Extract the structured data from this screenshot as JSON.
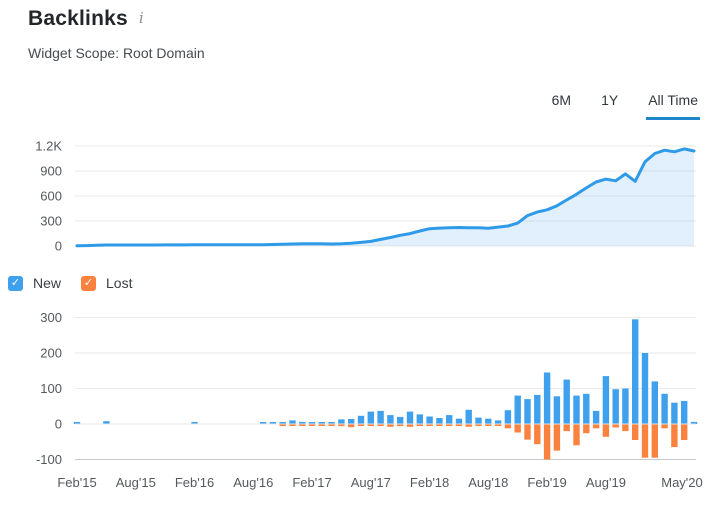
{
  "header": {
    "title": "Backlinks",
    "info_icon": "i",
    "subtitle": "Widget Scope: Root Domain"
  },
  "tabs": {
    "items": [
      {
        "label": "6M",
        "active": false
      },
      {
        "label": "1Y",
        "active": false
      },
      {
        "label": "All Time",
        "active": true
      }
    ]
  },
  "legend": {
    "new_label": "New",
    "lost_label": "Lost",
    "new_checked": true,
    "lost_checked": true,
    "check_glyph": "✓"
  },
  "colors": {
    "blue": "#3fa1ed",
    "line_blue": "#2f9be8",
    "area_fill": "rgba(66,160,236,0.16)",
    "orange": "#fb823e",
    "tab_underline": "#1e87cb",
    "gridline": "#e9eaeb",
    "gridline_bottom": "#c6cad0",
    "axis_text": "#55585c"
  },
  "chart_data": [
    {
      "type": "area",
      "name": "total-backlinks-over-time",
      "legend_position": "none",
      "grid": true,
      "ylim": [
        0,
        1260
      ],
      "y_ticks": [
        {
          "value": 0,
          "label": "0"
        },
        {
          "value": 300,
          "label": "300"
        },
        {
          "value": 600,
          "label": "600"
        },
        {
          "value": 900,
          "label": "900"
        },
        {
          "value": 1200,
          "label": "1.2K"
        }
      ],
      "categories": [
        "Feb'15",
        "Mar'15",
        "Apr'15",
        "May'15",
        "Jun'15",
        "Jul'15",
        "Aug'15",
        "Sep'15",
        "Oct'15",
        "Nov'15",
        "Dec'15",
        "Jan'16",
        "Feb'16",
        "Mar'16",
        "Apr'16",
        "May'16",
        "Jun'16",
        "Jul'16",
        "Aug'16",
        "Sep'16",
        "Oct'16",
        "Nov'16",
        "Dec'16",
        "Jan'17",
        "Feb'17",
        "Mar'17",
        "Apr'17",
        "May'17",
        "Jun'17",
        "Jul'17",
        "Aug'17",
        "Sep'17",
        "Oct'17",
        "Nov'17",
        "Dec'17",
        "Jan'18",
        "Feb'18",
        "Mar'18",
        "Apr'18",
        "May'18",
        "Jun'18",
        "Jul'18",
        "Aug'18",
        "Sep'18",
        "Oct'18",
        "Nov'18",
        "Dec'18",
        "Jan'19",
        "Feb'19",
        "Mar'19",
        "Apr'19",
        "May'19",
        "Jun'19",
        "Jul'19",
        "Aug'19",
        "Sep'19",
        "Oct'19",
        "Nov'19",
        "Dec'19",
        "Jan'20",
        "Feb'20",
        "Mar'20",
        "Apr'20",
        "May'20"
      ],
      "values": [
        3,
        5,
        8,
        12,
        12,
        12,
        12,
        12,
        12,
        13,
        13,
        13,
        14,
        14,
        14,
        14,
        14,
        14,
        14,
        16,
        18,
        20,
        24,
        26,
        28,
        26,
        24,
        27,
        33,
        43,
        55,
        79,
        102,
        129,
        149,
        180,
        208,
        215,
        220,
        222,
        220,
        218,
        212,
        227,
        240,
        275,
        365,
        408,
        435,
        482,
        553,
        620,
        697,
        768,
        803,
        782,
        865,
        776,
        1010,
        1110,
        1150,
        1130,
        1165,
        1140
      ]
    },
    {
      "type": "bar",
      "name": "new-and-lost-backlinks",
      "legend_position": "top-left",
      "grid": true,
      "ylim": [
        -140,
        330
      ],
      "y_ticks": [
        {
          "value": -100,
          "label": "-100"
        },
        {
          "value": 0,
          "label": "0"
        },
        {
          "value": 100,
          "label": "100"
        },
        {
          "value": 200,
          "label": "200"
        },
        {
          "value": 300,
          "label": "300"
        }
      ],
      "x_ticks": [
        {
          "month_index": 0,
          "label": "Feb'15"
        },
        {
          "month_index": 6,
          "label": "Aug'15"
        },
        {
          "month_index": 12,
          "label": "Feb'16"
        },
        {
          "month_index": 18,
          "label": "Aug'16"
        },
        {
          "month_index": 24,
          "label": "Feb'17"
        },
        {
          "month_index": 30,
          "label": "Aug'17"
        },
        {
          "month_index": 36,
          "label": "Feb'18"
        },
        {
          "month_index": 42,
          "label": "Aug'18"
        },
        {
          "month_index": 48,
          "label": "Feb'19"
        },
        {
          "month_index": 54,
          "label": "Aug'19"
        },
        {
          "month_index": 63,
          "label": "May'20"
        }
      ],
      "categories": [
        "Feb'15",
        "Mar'15",
        "Apr'15",
        "May'15",
        "Jun'15",
        "Jul'15",
        "Aug'15",
        "Sep'15",
        "Oct'15",
        "Nov'15",
        "Dec'15",
        "Jan'16",
        "Feb'16",
        "Mar'16",
        "Apr'16",
        "May'16",
        "Jun'16",
        "Jul'16",
        "Aug'16",
        "Sep'16",
        "Oct'16",
        "Nov'16",
        "Dec'16",
        "Jan'17",
        "Feb'17",
        "Mar'17",
        "Apr'17",
        "May'17",
        "Jun'17",
        "Jul'17",
        "Aug'17",
        "Sep'17",
        "Oct'17",
        "Nov'17",
        "Dec'17",
        "Jan'18",
        "Feb'18",
        "Mar'18",
        "Apr'18",
        "May'18",
        "Jun'18",
        "Jul'18",
        "Aug'18",
        "Sep'18",
        "Oct'18",
        "Nov'18",
        "Dec'18",
        "Jan'19",
        "Feb'19",
        "Mar'19",
        "Apr'19",
        "May'19",
        "Jun'19",
        "Jul'19",
        "Aug'19",
        "Sep'19",
        "Oct'19",
        "Nov'19",
        "Dec'19",
        "Jan'20",
        "Feb'20",
        "Mar'20",
        "Apr'20",
        "May'20"
      ],
      "series": [
        {
          "name": "New",
          "color": "#3fa1ed",
          "values": [
            3,
            0,
            0,
            8,
            0,
            0,
            0,
            0,
            0,
            0,
            0,
            0,
            3,
            0,
            0,
            0,
            0,
            0,
            0,
            3,
            3,
            3,
            10,
            6,
            5,
            3,
            3,
            13,
            14,
            23,
            35,
            37,
            25,
            20,
            35,
            27,
            21,
            17,
            25,
            15,
            40,
            18,
            15,
            10,
            39,
            80,
            70,
            82,
            145,
            78,
            125,
            80,
            85,
            37,
            135,
            98,
            100,
            295,
            200,
            120,
            85,
            60,
            65,
            6
          ]
        },
        {
          "name": "Lost",
          "color": "#fb823e",
          "values": [
            0,
            0,
            0,
            0,
            0,
            0,
            0,
            0,
            0,
            0,
            0,
            0,
            0,
            0,
            0,
            0,
            0,
            0,
            0,
            0,
            0,
            -2,
            -3,
            -2,
            -1,
            -5,
            -5,
            -6,
            -9,
            -2,
            -2,
            -3,
            -8,
            -2,
            -8,
            -3,
            -5,
            -2,
            -3,
            -2,
            -8,
            -4,
            -4,
            -3,
            -12,
            -24,
            -44,
            -57,
            -100,
            -75,
            -20,
            -60,
            -26,
            -12,
            -36,
            -10,
            -20,
            -45,
            -95,
            -95,
            -12,
            -65,
            -45,
            0
          ]
        }
      ]
    }
  ]
}
